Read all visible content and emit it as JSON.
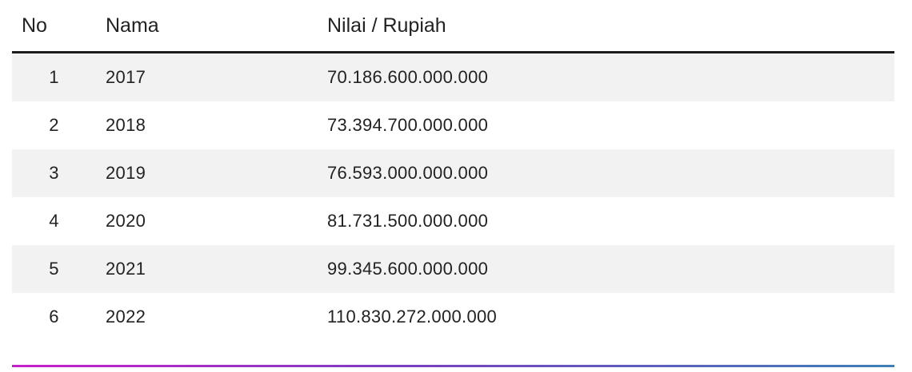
{
  "table": {
    "headers": {
      "no": "No",
      "nama": "Nama",
      "nilai": "Nilai / Rupiah"
    },
    "rows": [
      {
        "no": "1",
        "nama": "2017",
        "nilai": "70.186.600.000.000"
      },
      {
        "no": "2",
        "nama": "2018",
        "nilai": "73.394.700.000.000"
      },
      {
        "no": "3",
        "nama": "2019",
        "nilai": "76.593.000.000.000"
      },
      {
        "no": "4",
        "nama": "2020",
        "nilai": "81.731.500.000.000"
      },
      {
        "no": "5",
        "nama": "2021",
        "nilai": "99.345.600.000.000"
      },
      {
        "no": "6",
        "nama": "2022",
        "nilai": "110.830.272.000.000"
      }
    ]
  },
  "colors": {
    "row_stripe": "#f2f2f2",
    "header_rule": "#1c1c1c",
    "bottom_rule_gradient": [
      "#c81fc8",
      "#7a3fc0",
      "#3f7fb8"
    ]
  }
}
